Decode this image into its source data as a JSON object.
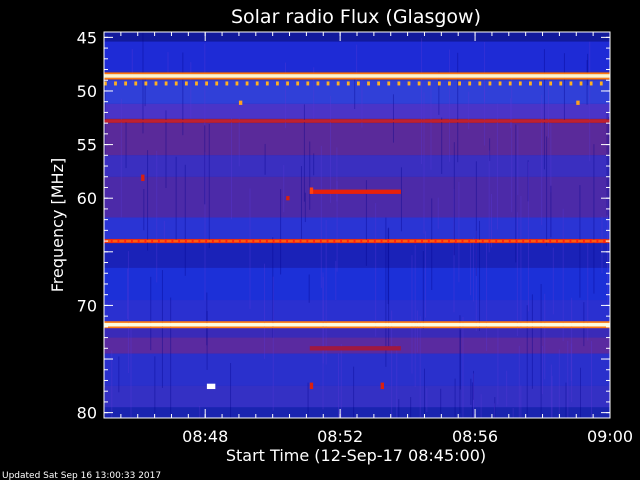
{
  "chart_data": {
    "type": "heatmap",
    "title": "Solar radio Flux (Glasgow)",
    "xlabel": "Start Time (12-Sep-17 08:45:00)",
    "ylabel": "Frequency [MHz]",
    "x_ticks": [
      "08:48",
      "08:52",
      "08:56",
      "09:00"
    ],
    "x_tick_minutes": [
      3,
      7,
      11,
      15
    ],
    "x_range_minutes": [
      0,
      15
    ],
    "y_ticks": [
      45,
      50,
      55,
      60,
      65,
      70,
      75,
      80
    ],
    "y_tick_labels": [
      "45",
      "50",
      "55",
      "60",
      "",
      "70",
      "",
      "80"
    ],
    "y_range": [
      44.5,
      80.5
    ],
    "colormap": [
      "#00008a",
      "#1f2ee0",
      "#5a3ad8",
      "#a01840",
      "#e0200a",
      "#ff7a10",
      "#fff0b0"
    ],
    "bands": [
      {
        "f1": 44.5,
        "f2": 45.4,
        "color": "#121a9c"
      },
      {
        "f1": 45.4,
        "f2": 48.2,
        "color": "#1e2bd6"
      },
      {
        "f1": 48.2,
        "f2": 49.0,
        "color": "#3b2c9e"
      },
      {
        "f1": 49.0,
        "f2": 51.2,
        "color": "#3040d8"
      },
      {
        "f1": 51.2,
        "f2": 52.6,
        "color": "#4a34c8"
      },
      {
        "f1": 52.6,
        "f2": 53.0,
        "color": "#a8203a"
      },
      {
        "f1": 53.0,
        "f2": 56.0,
        "color": "#5a2a9a"
      },
      {
        "f1": 56.0,
        "f2": 58.0,
        "color": "#3a2fc0"
      },
      {
        "f1": 58.0,
        "f2": 61.8,
        "color": "#4c2aa8"
      },
      {
        "f1": 61.8,
        "f2": 63.8,
        "color": "#2a34d4"
      },
      {
        "f1": 63.8,
        "f2": 64.2,
        "color": "#d42a14"
      },
      {
        "f1": 64.2,
        "f2": 66.5,
        "color": "#1a22b8"
      },
      {
        "f1": 66.5,
        "f2": 69.5,
        "color": "#1c30d8"
      },
      {
        "f1": 69.5,
        "f2": 71.6,
        "color": "#2a30d0"
      },
      {
        "f1": 71.6,
        "f2": 72.0,
        "color": "#ffe8b0"
      },
      {
        "f1": 72.0,
        "f2": 73.0,
        "color": "#3a2ab8"
      },
      {
        "f1": 73.0,
        "f2": 74.5,
        "color": "#5a2aa0"
      },
      {
        "f1": 74.5,
        "f2": 77.5,
        "color": "#2a30cc"
      },
      {
        "f1": 77.5,
        "f2": 79.5,
        "color": "#3430c4"
      },
      {
        "f1": 79.5,
        "f2": 80.5,
        "color": "#1a24b0"
      }
    ],
    "lines": [
      {
        "f": 48.6,
        "color": "#fff4c8",
        "width_mhz": 0.35
      },
      {
        "f": 48.35,
        "color": "#ff7a10",
        "width_mhz": 0.15
      },
      {
        "f": 48.85,
        "color": "#ff7a10",
        "width_mhz": 0.15
      },
      {
        "f": 52.8,
        "color": "#c02030",
        "width_mhz": 0.2
      },
      {
        "f": 64.0,
        "color": "#ff5a10",
        "width_mhz": 0.25
      },
      {
        "f": 71.8,
        "color": "#ffffe0",
        "width_mhz": 0.3
      },
      {
        "f": 71.55,
        "color": "#ff7a10",
        "width_mhz": 0.15
      },
      {
        "f": 72.05,
        "color": "#ff7a10",
        "width_mhz": 0.15
      }
    ],
    "dashed_lines": [
      {
        "f": 49.3,
        "color": "#ffb020",
        "dash_minutes": 0.15
      },
      {
        "f": 64.0,
        "color": "#ff2010",
        "dash_minutes": 0.1
      }
    ],
    "bursts": [
      {
        "t1": 6.1,
        "t2": 8.8,
        "f1": 59.2,
        "f2": 59.6,
        "color": "#e8200a"
      },
      {
        "t1": 6.1,
        "t2": 8.8,
        "f1": 73.8,
        "f2": 74.2,
        "color": "#a01840"
      },
      {
        "t1": 1.1,
        "t2": 1.2,
        "f1": 57.8,
        "f2": 58.4,
        "color": "#d82010"
      },
      {
        "t1": 5.4,
        "t2": 5.5,
        "f1": 59.8,
        "f2": 60.2,
        "color": "#d82010"
      },
      {
        "t1": 6.1,
        "t2": 6.2,
        "f1": 59.0,
        "f2": 59.6,
        "color": "#ff4010"
      },
      {
        "t1": 3.05,
        "t2": 3.3,
        "f1": 77.3,
        "f2": 77.8,
        "color": "#ffffff"
      },
      {
        "t1": 6.1,
        "t2": 6.2,
        "f1": 77.2,
        "f2": 77.8,
        "color": "#d82010"
      },
      {
        "t1": 8.2,
        "t2": 8.3,
        "f1": 77.2,
        "f2": 77.8,
        "color": "#d82010"
      },
      {
        "t1": 4.0,
        "t2": 4.1,
        "f1": 50.9,
        "f2": 51.3,
        "color": "#ffa020"
      },
      {
        "t1": 14.0,
        "t2": 14.1,
        "f1": 50.9,
        "f2": 51.3,
        "color": "#ffa020"
      }
    ],
    "footer": "Updated Sat Sep 16 13:00:33 2017"
  }
}
